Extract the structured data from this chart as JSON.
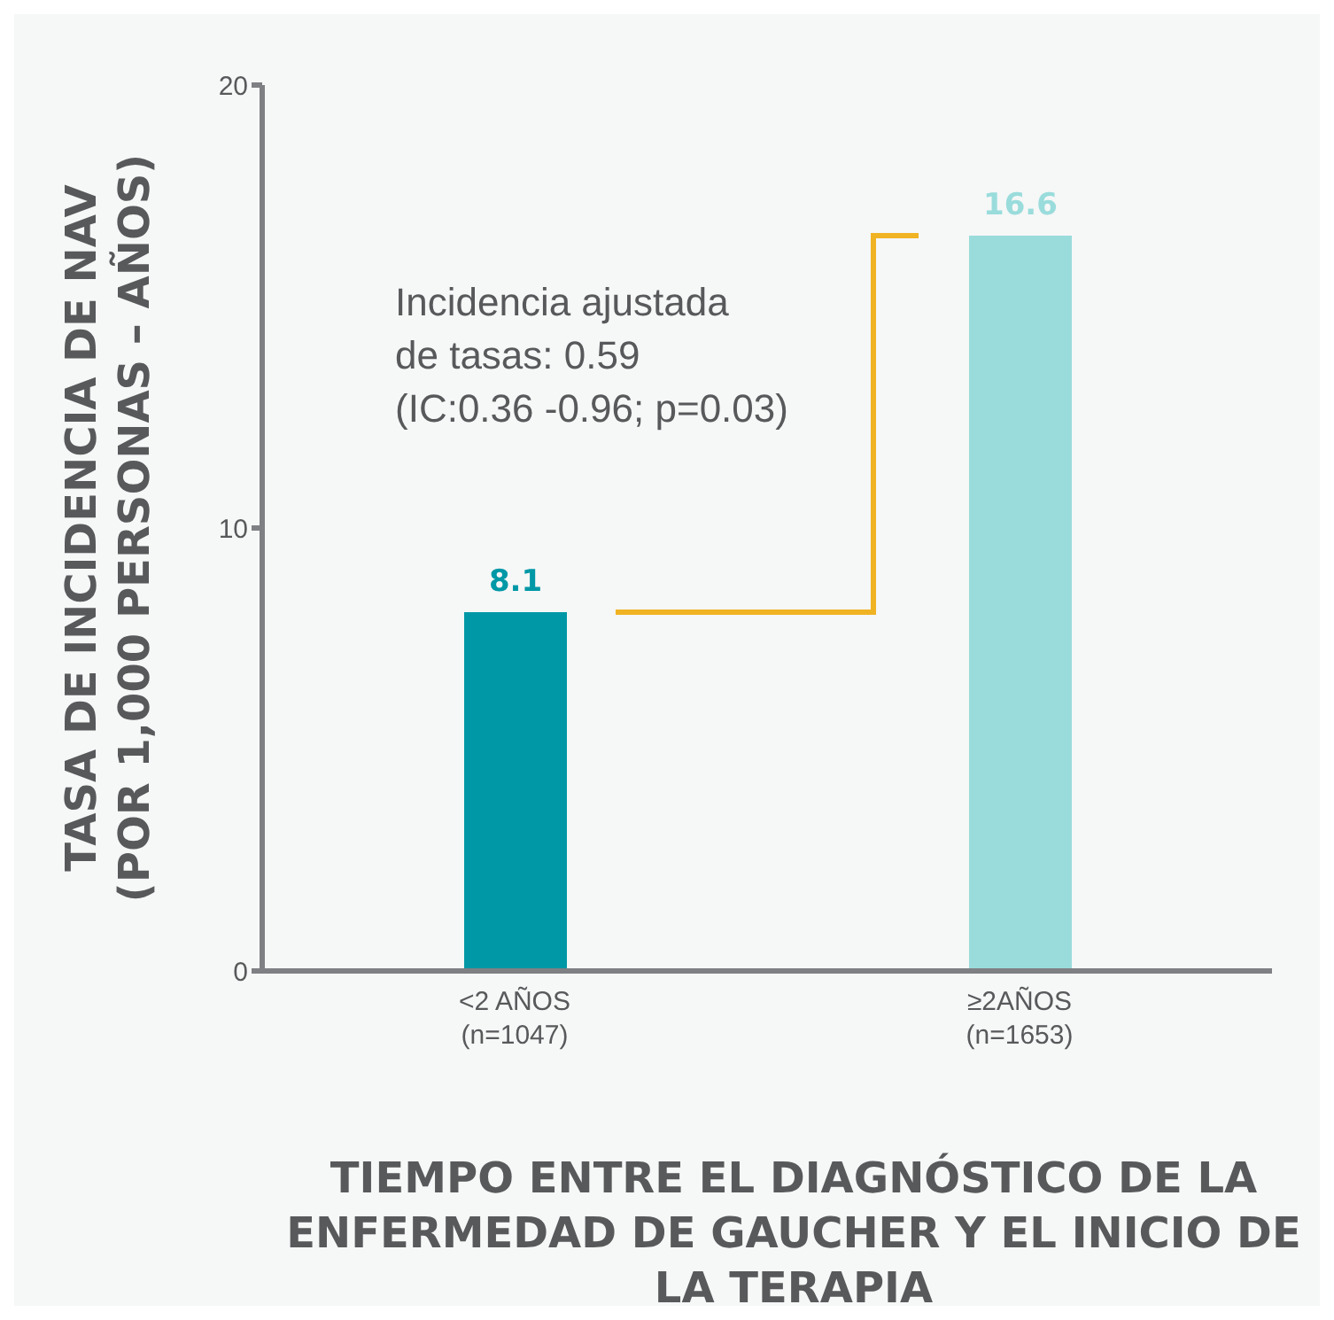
{
  "chart_data": {
    "type": "bar",
    "categories": [
      "<2 AÑOS\n(n=1047)",
      "≥2AÑOS\n(n=1653)"
    ],
    "values": [
      8.1,
      16.6
    ],
    "colors": [
      "#0098a6",
      "#9adcdc"
    ],
    "ylim": [
      0,
      20
    ],
    "yticks": [
      0,
      10,
      20
    ],
    "ylabel": "TASA DE INCIDENCIA DE NAV\n(POR 1,000 PERSONAS – AÑOS)",
    "xlabel": "TIEMPO ENTRE EL DIAGNÓSTICO DE LA ENFERMEDAD DE GAUCHER Y EL INICIO DE LA TERAPIA",
    "annotations": [
      "Incidencia ajustada\nde tasas: 0.59\n(IC:0.36 -0.96; p=0.03)"
    ],
    "data_labels": true,
    "grid": false,
    "legend": false
  }
}
